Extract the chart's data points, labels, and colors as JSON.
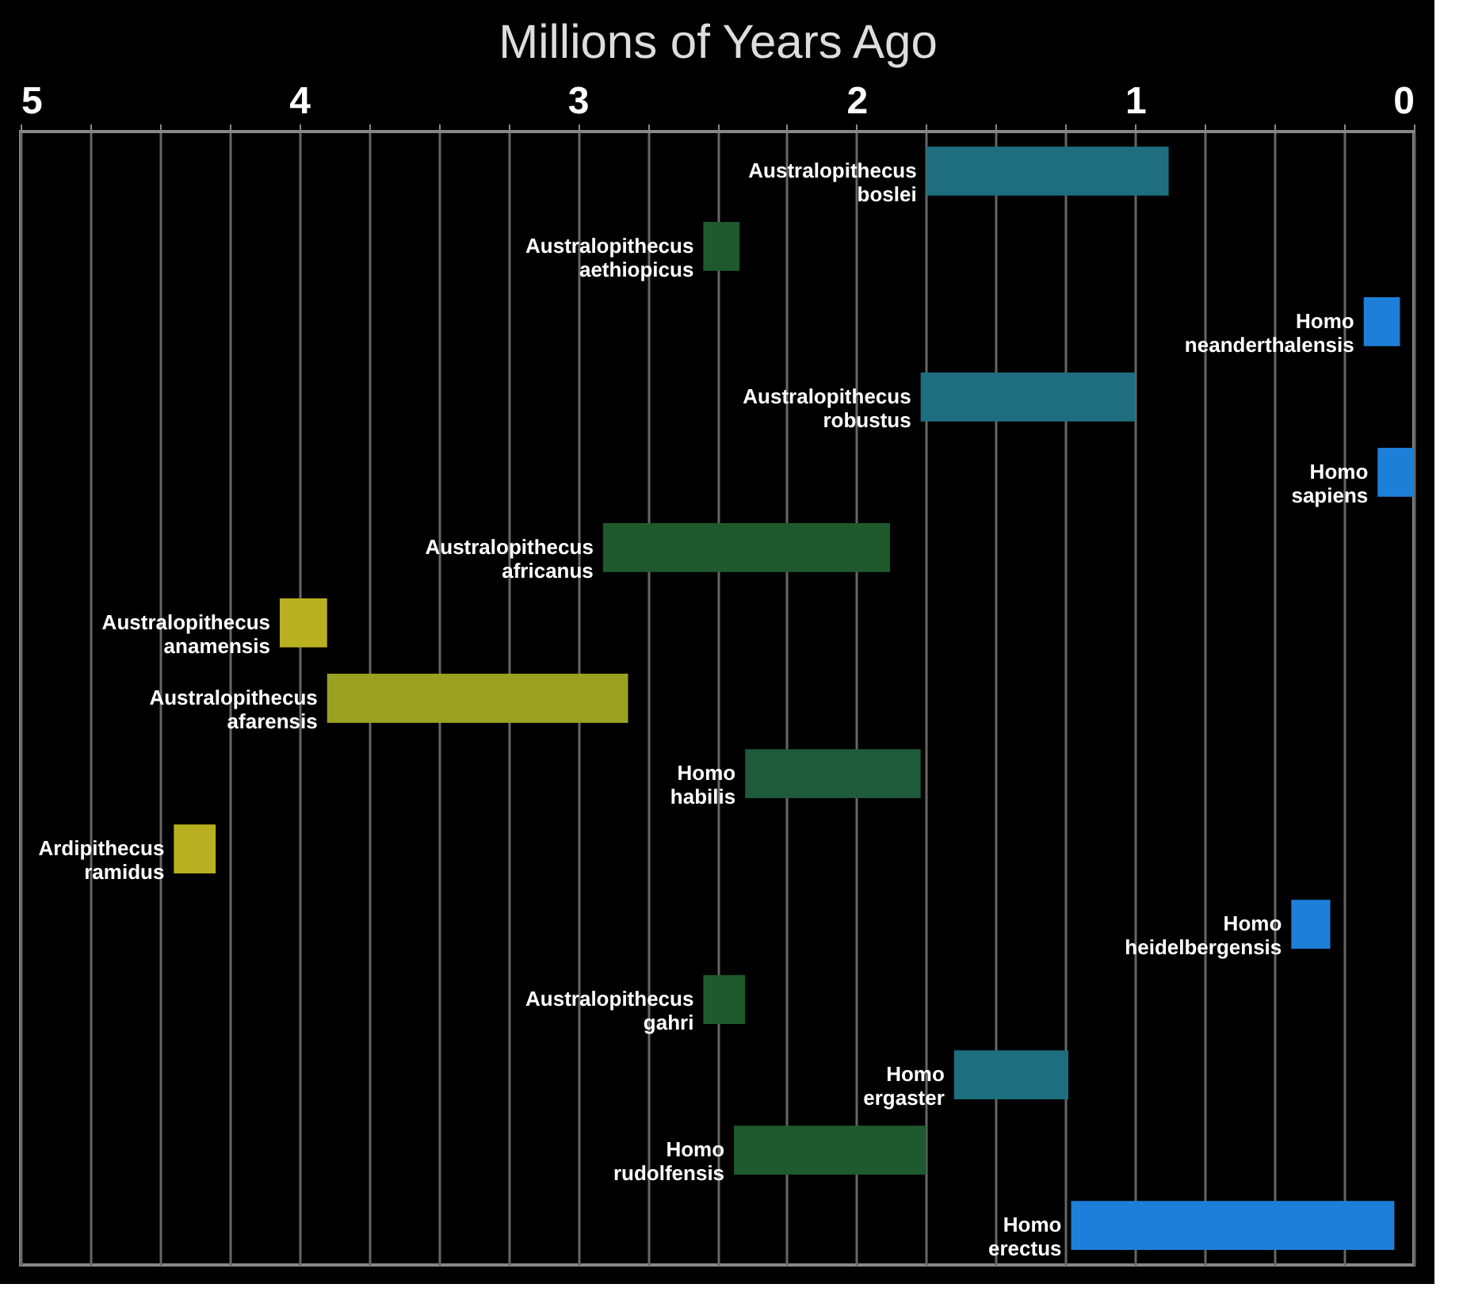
{
  "chart_data": {
    "type": "bar",
    "orientation": "horizontal",
    "xlabel": "Millions of Years Ago",
    "categories": [
      "Australopithecus boslei",
      "Australopithecus aethiopicus",
      "Homo neanderthalensis",
      "Australopithecus robustus",
      "Homo sapiens",
      "Australopithecus africanus",
      "Australopithecus anamensis",
      "Australopithecus afarensis",
      "Homo habilis",
      "Ardipithecus ramidus",
      "Homo heidelbergensis",
      "Australopithecus gahri",
      "Homo ergaster",
      "Homo rudolfensis",
      "Homo erectus"
    ],
    "base": [
      0.88,
      2.42,
      0.05,
      1.0,
      0,
      1.88,
      3.9,
      2.82,
      1.77,
      4.3,
      0.3,
      2.4,
      1.24,
      1.75,
      0.07
    ],
    "values": [
      0.87,
      0.13,
      0.13,
      0.77,
      0.13,
      1.03,
      0.17,
      1.08,
      0.63,
      0.15,
      0.14,
      0.15,
      0.41,
      0.69,
      1.16
    ],
    "colors": [
      "#1f6e80",
      "#1f5a2e",
      "#1e7fd8",
      "#1f6e80",
      "#1e7fd8",
      "#1f5a2e",
      "#b8b020",
      "#9aa020",
      "#1f5a3a",
      "#b8b020",
      "#1e7fd8",
      "#1f5a2e",
      "#1f6e80",
      "#1f5a2e",
      "#1e7fd8"
    ],
    "xlim": [
      5,
      0
    ],
    "xticks": [
      5,
      {
        "value": 4.75,
        "label": null
      },
      {
        "value": 4.5,
        "label": null
      },
      {
        "value": 4.25,
        "label": null
      },
      4,
      {
        "value": 3.75,
        "label": null
      },
      {
        "value": 3.5,
        "label": null
      },
      {
        "value": 3.25,
        "label": null
      },
      3,
      {
        "value": 2.75,
        "label": null
      },
      {
        "value": 2.5,
        "label": null
      },
      {
        "value": 2.25,
        "label": null
      },
      2,
      {
        "value": 1.75,
        "label": null
      },
      {
        "value": 1.5,
        "label": null
      },
      {
        "value": 1.25,
        "label": null
      },
      1,
      {
        "value": 0.75,
        "label": null
      },
      {
        "value": 0.5,
        "label": null
      },
      {
        "value": 0.25,
        "label": null
      },
      0
    ],
    "grid": "x",
    "tick_labels": "x"
  }
}
